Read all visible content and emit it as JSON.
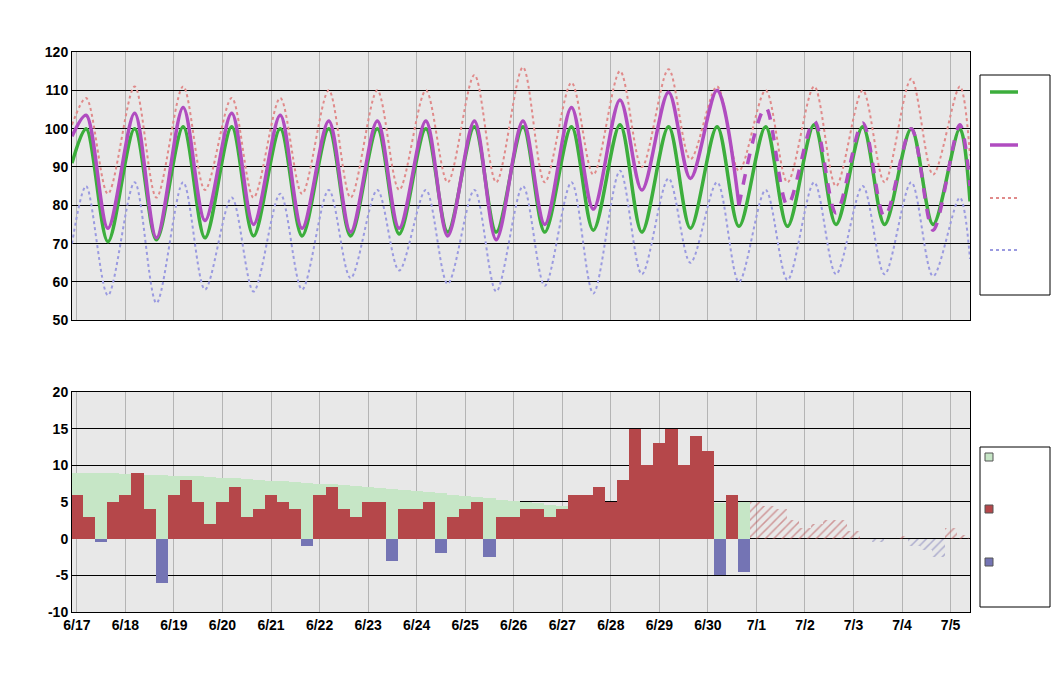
{
  "chart_data": [
    {
      "type": "line",
      "grid": true,
      "tick_labels": "y",
      "xlim": [
        -0.1,
        18.4
      ],
      "xticks": [
        {
          "value": 0,
          "label": "6/17"
        },
        {
          "value": 1,
          "label": "6/18"
        },
        {
          "value": 2,
          "label": "6/19"
        },
        {
          "value": 3,
          "label": "6/20"
        },
        {
          "value": 4,
          "label": "6/21"
        },
        {
          "value": 5,
          "label": "6/22"
        },
        {
          "value": 6,
          "label": "6/23"
        },
        {
          "value": 7,
          "label": "6/24"
        },
        {
          "value": 8,
          "label": "6/25"
        },
        {
          "value": 9,
          "label": "6/26"
        },
        {
          "value": 10,
          "label": "6/27"
        },
        {
          "value": 11,
          "label": "6/28"
        },
        {
          "value": 12,
          "label": "6/29"
        },
        {
          "value": 13,
          "label": "6/30"
        },
        {
          "value": 14,
          "label": "7/1"
        },
        {
          "value": 15,
          "label": "7/2"
        },
        {
          "value": 16,
          "label": "7/3"
        },
        {
          "value": 17,
          "label": "7/4"
        },
        {
          "value": 18,
          "label": "7/5"
        }
      ],
      "ylim": [
        50,
        120
      ],
      "yticks": [
        50,
        60,
        70,
        80,
        90,
        100,
        110,
        120
      ],
      "x": [
        -0.1,
        0.19,
        0.64,
        1.19,
        1.64,
        2.19,
        2.64,
        3.19,
        3.64,
        4.19,
        4.64,
        5.19,
        5.64,
        6.19,
        6.64,
        7.19,
        7.64,
        8.19,
        8.64,
        9.19,
        9.64,
        10.19,
        10.64,
        11.19,
        11.64,
        12.19,
        12.64,
        13.19,
        13.64,
        14.19,
        14.64,
        15.19,
        15.64,
        16.19,
        16.64,
        17.19,
        17.64,
        18.19,
        18.4
      ],
      "series": [
        {
          "color": "#e08a8a",
          "line_style": "dotted",
          "values": [
            101,
            108,
            83,
            111,
            82,
            111,
            84,
            108,
            82,
            108,
            83,
            110,
            82,
            110,
            84,
            110,
            86,
            114,
            86,
            116,
            86,
            112,
            88,
            115,
            90,
            115.5,
            92,
            111,
            89,
            110,
            86,
            111,
            85,
            110,
            86,
            113,
            88,
            111,
            93
          ]
        },
        {
          "color": "#9a9ae0",
          "line_style": "dotted",
          "values": [
            70,
            85,
            56.5,
            86,
            54.5,
            86,
            58,
            82,
            57.5,
            83,
            58,
            84,
            61,
            84,
            63,
            84,
            59.5,
            84,
            57.5,
            85,
            59,
            86,
            57,
            89,
            62,
            87,
            65,
            86,
            60,
            84,
            60.5,
            86,
            62,
            85,
            62,
            86,
            61.5,
            82,
            66
          ]
        },
        {
          "color": "#3cae3c",
          "line_style": "solid",
          "values": [
            91,
            100,
            70.5,
            100,
            71,
            100.5,
            71.5,
            100.5,
            72,
            100,
            72,
            100,
            72,
            100,
            72.5,
            100,
            73,
            100.5,
            73,
            100.5,
            73,
            100.5,
            73.5,
            101,
            73,
            100.5,
            74,
            100.5,
            74.5,
            100.5,
            74.5,
            101,
            75,
            100.5,
            75,
            100,
            75,
            100,
            81
          ]
        },
        {
          "color": "#b04cc0",
          "line_style": "solid",
          "values": [
            98,
            103.5,
            74,
            104,
            71.5,
            105.5,
            76,
            104,
            75,
            103.5,
            74,
            102,
            73,
            102,
            74,
            102,
            72,
            102,
            71,
            102,
            75,
            105.5,
            79,
            107.5,
            84,
            109.5,
            87,
            110,
            80,
            null,
            null,
            null,
            null,
            null,
            null,
            null,
            null,
            null,
            null
          ]
        },
        {
          "color": "#b04cc0",
          "line_style": "dashed",
          "values": [
            null,
            null,
            null,
            null,
            null,
            null,
            null,
            null,
            null,
            null,
            null,
            null,
            null,
            null,
            null,
            null,
            null,
            null,
            null,
            null,
            null,
            null,
            null,
            null,
            null,
            null,
            null,
            null,
            80,
            105.5,
            80,
            102,
            78,
            101.5,
            77,
            100,
            73.5,
            101,
            85
          ]
        }
      ]
    },
    {
      "type": "bar",
      "grid": true,
      "xlim": [
        -0.1,
        18.4
      ],
      "xticks": [
        {
          "value": 0,
          "label": "6/17"
        },
        {
          "value": 1,
          "label": "6/18"
        },
        {
          "value": 2,
          "label": "6/19"
        },
        {
          "value": 3,
          "label": "6/20"
        },
        {
          "value": 4,
          "label": "6/21"
        },
        {
          "value": 5,
          "label": "6/22"
        },
        {
          "value": 6,
          "label": "6/23"
        },
        {
          "value": 7,
          "label": "6/24"
        },
        {
          "value": 8,
          "label": "6/25"
        },
        {
          "value": 9,
          "label": "6/26"
        },
        {
          "value": 10,
          "label": "6/27"
        },
        {
          "value": 11,
          "label": "6/28"
        },
        {
          "value": 12,
          "label": "6/29"
        },
        {
          "value": 13,
          "label": "6/30"
        },
        {
          "value": 14,
          "label": "7/1"
        },
        {
          "value": 15,
          "label": "7/2"
        },
        {
          "value": 16,
          "label": "7/3"
        },
        {
          "value": 17,
          "label": "7/4"
        },
        {
          "value": 18,
          "label": "7/5"
        }
      ],
      "ylim": [
        -10,
        20
      ],
      "yticks": [
        -10,
        -5,
        0,
        5,
        10,
        15,
        20
      ],
      "x": [
        0,
        0.25,
        0.5,
        0.75,
        1,
        1.25,
        1.5,
        1.75,
        2,
        2.25,
        2.5,
        2.75,
        3,
        3.25,
        3.5,
        3.75,
        4,
        4.25,
        4.5,
        4.75,
        5,
        5.25,
        5.5,
        5.75,
        6,
        6.25,
        6.5,
        6.75,
        7,
        7.25,
        7.5,
        7.75,
        8,
        8.25,
        8.5,
        8.75,
        9,
        9.25,
        9.5,
        9.75,
        10,
        10.25,
        10.5,
        10.75,
        11,
        11.25,
        11.5,
        11.75,
        12,
        12.25,
        12.5,
        12.75,
        13,
        13.25,
        13.5,
        13.75,
        14,
        14.25,
        14.5,
        14.75,
        15,
        15.25,
        15.5,
        15.75,
        16,
        16.25,
        16.5,
        16.75,
        17,
        17.25,
        17.5,
        17.75,
        18,
        18.25
      ],
      "series": [
        {
          "color": "#c6e6c6",
          "line_style": "solid",
          "values": [
            9,
            9,
            8.9,
            8.9,
            8.8,
            8.8,
            8.7,
            8.7,
            8.6,
            8.5,
            8.5,
            8.4,
            8.3,
            8.2,
            8.1,
            8.0,
            7.9,
            7.8,
            7.7,
            7.6,
            7.5,
            7.4,
            7.3,
            7.2,
            7.0,
            6.9,
            6.8,
            6.6,
            6.5,
            6.3,
            6.2,
            6.0,
            5.8,
            5.7,
            5.5,
            5.3,
            5.1,
            5.0,
            4.8,
            4.6,
            4.5,
            4.3,
            4.2,
            4.1,
            4.0,
            4.0,
            4.1,
            4.2,
            4.3,
            4.4,
            4.5,
            4.6,
            4.8,
            4.9,
            5.0,
            5.0,
            null,
            null,
            null,
            null,
            null,
            null,
            null,
            null,
            null,
            null,
            null,
            null,
            null,
            null,
            null,
            null,
            null,
            null
          ]
        },
        {
          "color": "#b5474a",
          "line_style": "solid",
          "values": [
            6,
            3,
            null,
            5,
            6,
            9,
            4,
            null,
            6,
            8,
            5,
            2,
            5,
            7,
            3,
            4,
            6,
            5,
            4,
            null,
            6,
            7,
            4,
            3,
            5,
            5,
            null,
            4,
            4,
            5,
            null,
            3,
            4,
            5,
            null,
            3,
            3,
            4,
            4,
            3,
            4,
            6,
            6,
            7,
            5,
            8,
            15,
            10,
            13,
            15,
            10,
            14,
            12,
            null,
            6,
            null,
            null,
            null,
            null,
            null,
            null,
            null,
            null,
            null,
            null,
            null,
            null,
            null,
            null,
            null,
            null,
            null,
            null,
            null
          ]
        },
        {
          "color": "#7474b4",
          "line_style": "solid",
          "values": [
            null,
            null,
            -0.5,
            null,
            null,
            null,
            null,
            -6,
            null,
            null,
            null,
            null,
            null,
            null,
            null,
            null,
            null,
            null,
            null,
            -1,
            null,
            null,
            null,
            null,
            null,
            null,
            -3,
            null,
            null,
            null,
            -2,
            null,
            null,
            null,
            -2.5,
            null,
            null,
            null,
            null,
            null,
            null,
            null,
            null,
            null,
            null,
            null,
            null,
            null,
            null,
            null,
            null,
            null,
            null,
            -5,
            null,
            -4.5,
            null,
            null,
            null,
            null,
            null,
            null,
            null,
            null,
            null,
            null,
            null,
            null,
            null,
            null,
            null,
            null,
            null,
            null
          ]
        },
        {
          "color": "#b5474a",
          "line_style": "hatched",
          "values": [
            null,
            null,
            null,
            null,
            null,
            null,
            null,
            null,
            null,
            null,
            null,
            null,
            null,
            null,
            null,
            null,
            null,
            null,
            null,
            null,
            null,
            null,
            null,
            null,
            null,
            null,
            null,
            null,
            null,
            null,
            null,
            null,
            null,
            null,
            null,
            null,
            null,
            null,
            null,
            null,
            null,
            null,
            null,
            null,
            null,
            null,
            null,
            null,
            null,
            null,
            null,
            null,
            null,
            null,
            null,
            null,
            5,
            4.5,
            4,
            2.5,
            1.5,
            2,
            2.5,
            2.5,
            1,
            0,
            null,
            0,
            0.3,
            null,
            null,
            null,
            1.5,
            0.5
          ]
        },
        {
          "color": "#7474b4",
          "line_style": "hatched",
          "values": [
            null,
            null,
            null,
            null,
            null,
            null,
            null,
            null,
            null,
            null,
            null,
            null,
            null,
            null,
            null,
            null,
            null,
            null,
            null,
            null,
            null,
            null,
            null,
            null,
            null,
            null,
            null,
            null,
            null,
            null,
            null,
            null,
            null,
            null,
            null,
            null,
            null,
            null,
            null,
            null,
            null,
            null,
            null,
            null,
            null,
            null,
            null,
            null,
            null,
            null,
            null,
            null,
            null,
            null,
            null,
            null,
            null,
            null,
            null,
            null,
            null,
            null,
            null,
            null,
            null,
            null,
            -0.5,
            null,
            null,
            -1,
            -1.5,
            -2.5,
            null,
            null
          ]
        }
      ]
    }
  ]
}
